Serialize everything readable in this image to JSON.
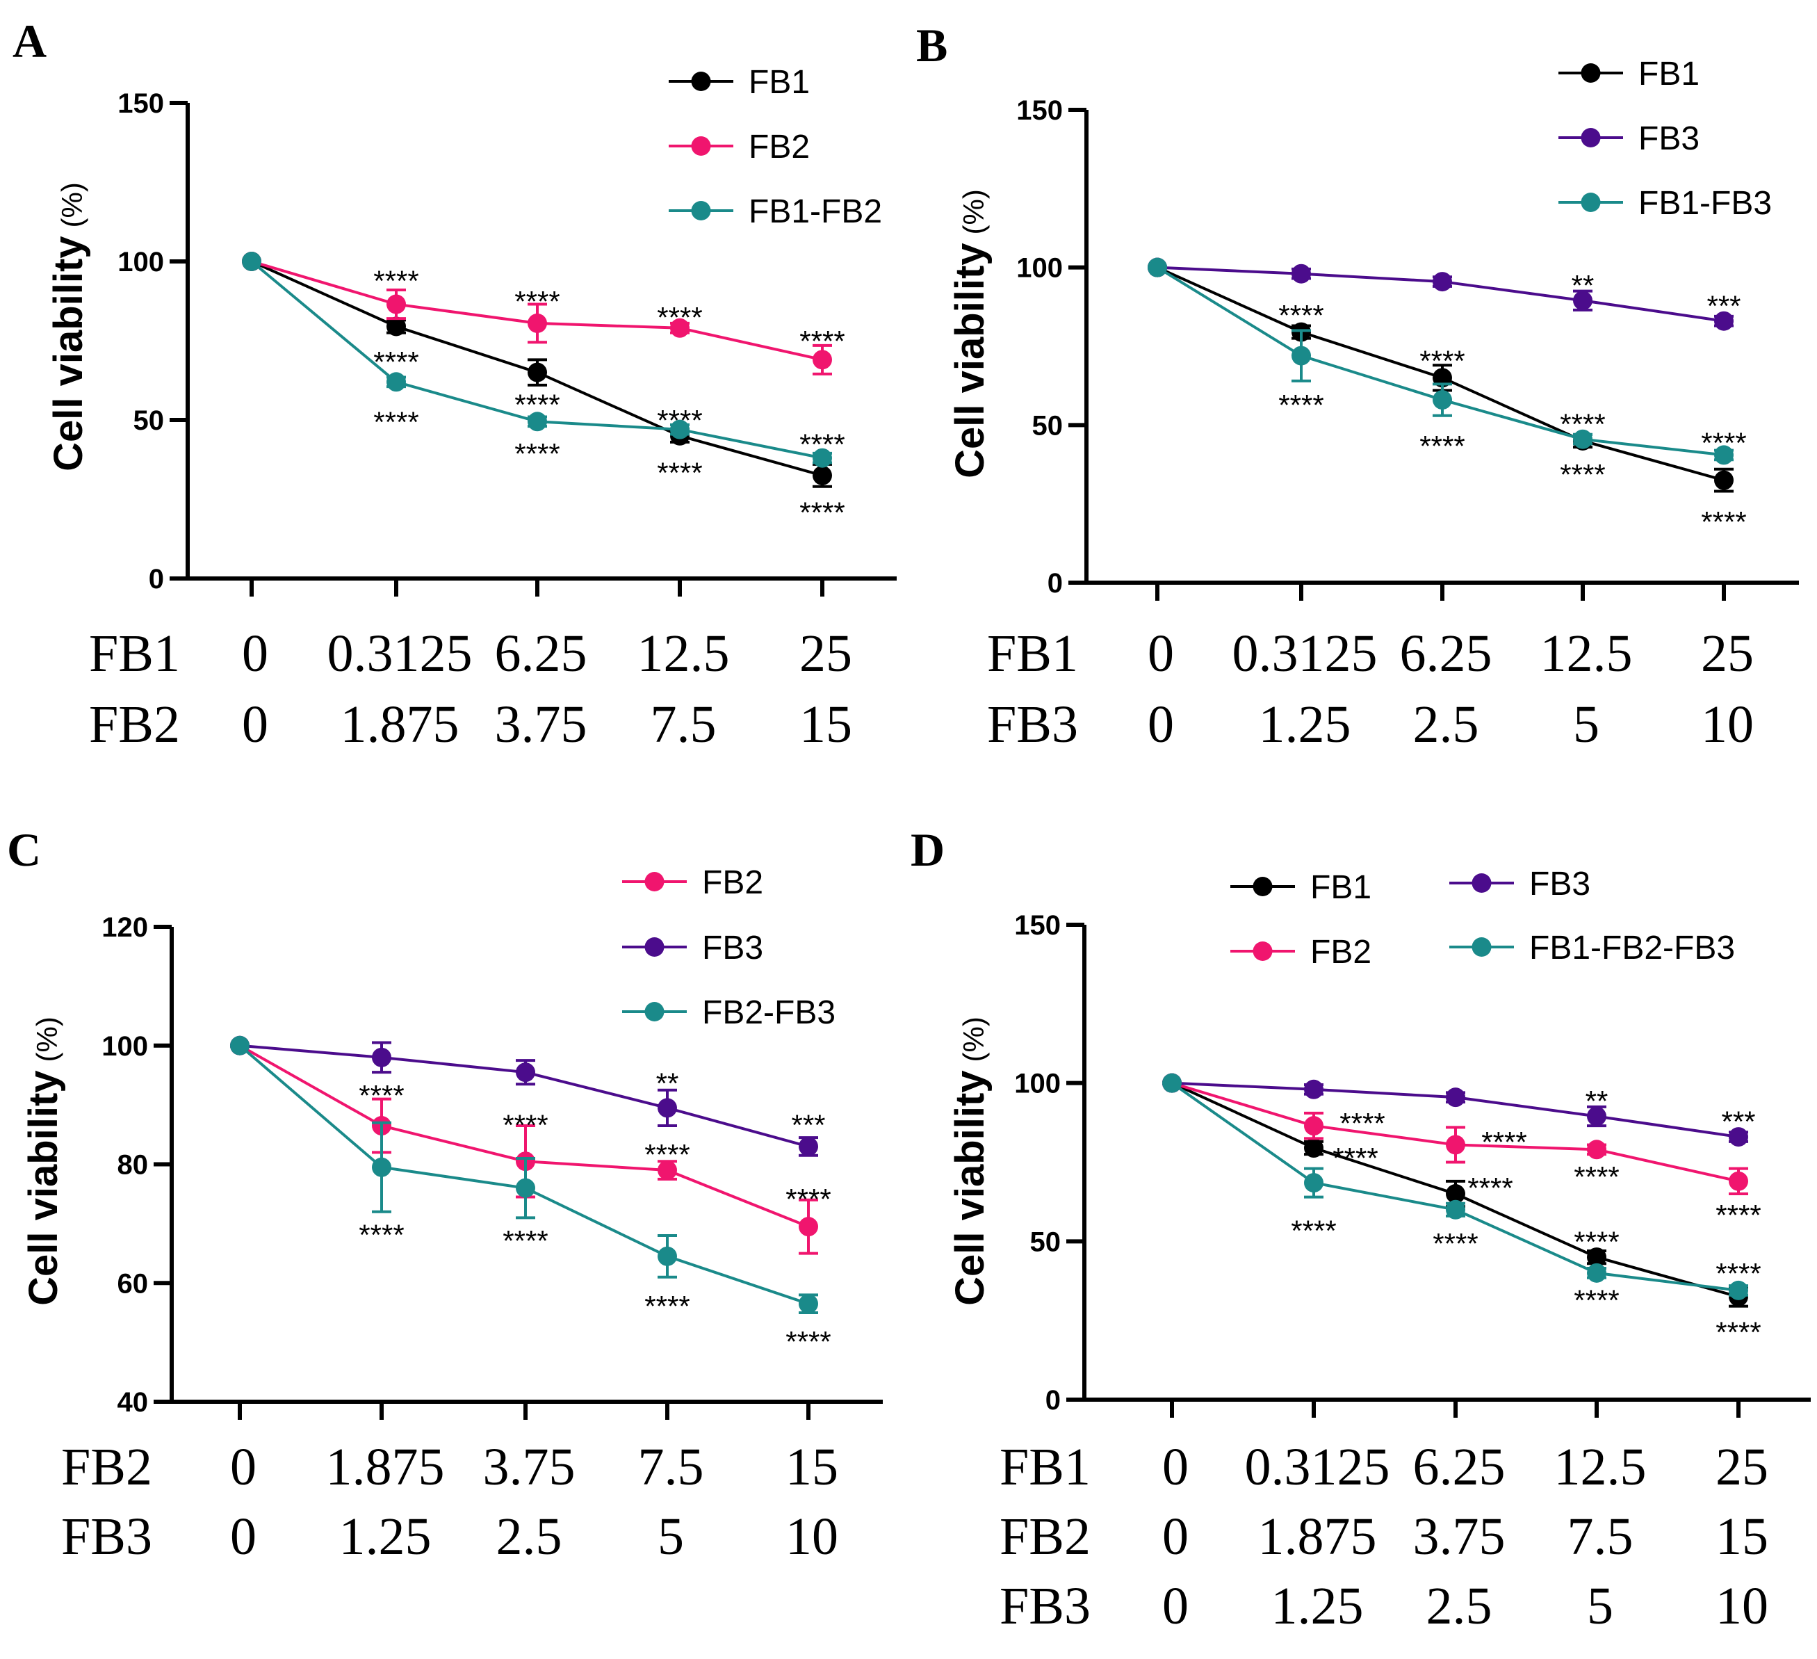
{
  "colors": {
    "FB1": "#000000",
    "FB2": "#f0156e",
    "FB3": "#4b0c8c",
    "COMBO": "#1a8a8a"
  },
  "chart_data": [
    {
      "id": "A",
      "type": "line",
      "panel_label": "A",
      "ylabel": "Cell viability",
      "yunit": "(%)",
      "ylim": [
        0,
        150
      ],
      "yticks": [
        0,
        50,
        100,
        150
      ],
      "legend": [
        {
          "label": "FB1",
          "color_key": "FB1"
        },
        {
          "label": "FB2",
          "color_key": "FB2"
        },
        {
          "label": "FB1-FB2",
          "color_key": "COMBO"
        }
      ],
      "dose_rows": [
        {
          "label": "FB1",
          "values": [
            "0",
            "0.3125",
            "6.25",
            "12.5",
            "25"
          ]
        },
        {
          "label": "FB2",
          "values": [
            "0",
            "1.875",
            "3.75",
            "7.5",
            "15"
          ]
        }
      ],
      "series": [
        {
          "name": "FB1",
          "color_key": "FB1",
          "values": [
            100,
            79.5,
            65,
            45,
            32.5
          ],
          "errors": [
            0,
            2,
            4,
            2,
            3.5
          ]
        },
        {
          "name": "FB2",
          "color_key": "FB2",
          "values": [
            100,
            86.5,
            80.5,
            79,
            69
          ],
          "errors": [
            0,
            4.5,
            6,
            1.5,
            4.5
          ]
        },
        {
          "name": "FB1-FB2",
          "color_key": "COMBO",
          "values": [
            100,
            62,
            49.5,
            47,
            38
          ],
          "errors": [
            0,
            1.5,
            1.5,
            1.5,
            1.5
          ]
        }
      ],
      "annotations": [
        {
          "text": "****",
          "point": 1,
          "value": 95.5
        },
        {
          "text": "****",
          "point": 1,
          "value": 70
        },
        {
          "text": "****",
          "point": 1,
          "value": 51
        },
        {
          "text": "****",
          "point": 2,
          "value": 89
        },
        {
          "text": "****",
          "point": 2,
          "value": 56.5
        },
        {
          "text": "****",
          "point": 2,
          "value": 41
        },
        {
          "text": "****",
          "point": 3,
          "value": 84
        },
        {
          "text": "****",
          "point": 3,
          "value": 51.5
        },
        {
          "text": "****",
          "point": 3,
          "value": 35
        },
        {
          "text": "****",
          "point": 4,
          "value": 76.5
        },
        {
          "text": "****",
          "point": 4,
          "value": 44
        },
        {
          "text": "****",
          "point": 4,
          "value": 22.5
        }
      ]
    },
    {
      "id": "B",
      "type": "line",
      "panel_label": "B",
      "ylabel": "Cell viability",
      "yunit": "(%)",
      "ylim": [
        0,
        150
      ],
      "yticks": [
        0,
        50,
        100,
        150
      ],
      "legend": [
        {
          "label": "FB1",
          "color_key": "FB1"
        },
        {
          "label": "FB3",
          "color_key": "FB3"
        },
        {
          "label": "FB1-FB3",
          "color_key": "COMBO"
        }
      ],
      "dose_rows": [
        {
          "label": "FB1",
          "values": [
            "0",
            "0.3125",
            "6.25",
            "12.5",
            "25"
          ]
        },
        {
          "label": "FB3",
          "values": [
            "0",
            "1.25",
            "2.5",
            "5",
            "10"
          ]
        }
      ],
      "series": [
        {
          "name": "FB1",
          "color_key": "FB1",
          "values": [
            100,
            79.5,
            65,
            45,
            32.5
          ],
          "errors": [
            0,
            2,
            4,
            2,
            3.5
          ]
        },
        {
          "name": "FB3",
          "color_key": "FB3",
          "values": [
            100,
            98,
            95.5,
            89.5,
            83
          ],
          "errors": [
            0,
            1.5,
            1.5,
            3,
            1.5
          ]
        },
        {
          "name": "FB1-FB3",
          "color_key": "COMBO",
          "values": [
            100,
            72,
            58,
            45.5,
            40.5
          ],
          "errors": [
            0,
            8,
            5,
            1.5,
            1.5
          ]
        }
      ],
      "annotations": [
        {
          "text": "****",
          "point": 1,
          "value": 86.5
        },
        {
          "text": "****",
          "point": 1,
          "value": 58
        },
        {
          "text": "****",
          "point": 2,
          "value": 72
        },
        {
          "text": "****",
          "point": 2,
          "value": 45
        },
        {
          "text": "**",
          "point": 3,
          "value": 96
        },
        {
          "text": "****",
          "point": 3,
          "value": 52
        },
        {
          "text": "****",
          "point": 3,
          "value": 36
        },
        {
          "text": "***",
          "point": 4,
          "value": 89.5
        },
        {
          "text": "****",
          "point": 4,
          "value": 46
        },
        {
          "text": "****",
          "point": 4,
          "value": 21
        }
      ]
    },
    {
      "id": "C",
      "type": "line",
      "panel_label": "C",
      "ylabel": "Cell viability",
      "yunit": "(%)",
      "ylim": [
        40,
        120
      ],
      "yticks": [
        40,
        60,
        80,
        100,
        120
      ],
      "legend": [
        {
          "label": "FB2",
          "color_key": "FB2"
        },
        {
          "label": "FB3",
          "color_key": "FB3"
        },
        {
          "label": "FB2-FB3",
          "color_key": "COMBO"
        }
      ],
      "dose_rows": [
        {
          "label": "FB2",
          "values": [
            "0",
            "1.875",
            "3.75",
            "7.5",
            "15"
          ]
        },
        {
          "label": "FB3",
          "values": [
            "0",
            "1.25",
            "2.5",
            "5",
            "10"
          ]
        }
      ],
      "series": [
        {
          "name": "FB2",
          "color_key": "FB2",
          "values": [
            100,
            86.5,
            80.5,
            79,
            69.5
          ],
          "errors": [
            0,
            4.5,
            6,
            1.5,
            4.5
          ]
        },
        {
          "name": "FB3",
          "color_key": "FB3",
          "values": [
            100,
            98,
            95.5,
            89.5,
            83
          ],
          "errors": [
            0,
            2.5,
            2,
            3,
            1.5
          ]
        },
        {
          "name": "FB2-FB3",
          "color_key": "COMBO",
          "values": [
            100,
            79.5,
            76,
            64.5,
            56.5
          ],
          "errors": [
            0,
            7.5,
            5,
            3.5,
            1.5
          ]
        }
      ],
      "annotations": [
        {
          "text": "****",
          "point": 1,
          "value": 92.5
        },
        {
          "text": "****",
          "point": 1,
          "value": 69
        },
        {
          "text": "****",
          "point": 2,
          "value": 87.5
        },
        {
          "text": "****",
          "point": 2,
          "value": 68
        },
        {
          "text": "**",
          "point": 3,
          "value": 94.5
        },
        {
          "text": "****",
          "point": 3,
          "value": 82.5
        },
        {
          "text": "****",
          "point": 3,
          "value": 57
        },
        {
          "text": "***",
          "point": 4,
          "value": 87.5
        },
        {
          "text": "****",
          "point": 4,
          "value": 75
        },
        {
          "text": "****",
          "point": 4,
          "value": 51
        }
      ]
    },
    {
      "id": "D",
      "type": "line",
      "panel_label": "D",
      "ylabel": "Cell viability",
      "yunit": "(%)",
      "ylim": [
        0,
        150
      ],
      "yticks": [
        0,
        50,
        100,
        150
      ],
      "legend": [
        {
          "label": "FB1",
          "color_key": "FB1",
          "slot": "col1-row1"
        },
        {
          "label": "FB2",
          "color_key": "FB2",
          "slot": "col1-row2"
        },
        {
          "label": "FB3",
          "color_key": "FB3",
          "slot": "col2-row1"
        },
        {
          "label": "FB1-FB2-FB3",
          "color_key": "COMBO",
          "slot": "col2-row2"
        }
      ],
      "dose_rows": [
        {
          "label": "FB1",
          "values": [
            "0",
            "0.3125",
            "6.25",
            "12.5",
            "25"
          ]
        },
        {
          "label": "FB2",
          "values": [
            "0",
            "1.875",
            "3.75",
            "7.5",
            "15"
          ]
        },
        {
          "label": "FB3",
          "values": [
            "0",
            "1.25",
            "2.5",
            "5",
            "10"
          ]
        }
      ],
      "series": [
        {
          "name": "FB1",
          "color_key": "FB1",
          "values": [
            100,
            79.5,
            65,
            45,
            32.5
          ],
          "errors": [
            0,
            2,
            4,
            2,
            3
          ]
        },
        {
          "name": "FB2",
          "color_key": "FB2",
          "values": [
            100,
            86.5,
            80.5,
            79,
            69
          ],
          "errors": [
            0,
            4,
            5.5,
            1.5,
            4
          ]
        },
        {
          "name": "FB3",
          "color_key": "FB3",
          "values": [
            100,
            98,
            95.5,
            89.5,
            83
          ],
          "errors": [
            0,
            1.5,
            1.5,
            3,
            1.5
          ]
        },
        {
          "name": "FB1-FB2-FB3",
          "color_key": "COMBO",
          "values": [
            100,
            68.5,
            60,
            40,
            34.5
          ],
          "errors": [
            0,
            4.5,
            2,
            1.5,
            1.5
          ]
        }
      ],
      "annotations": [
        {
          "text": "****",
          "point": 1,
          "value": 89,
          "offset": 70
        },
        {
          "text": "****",
          "point": 1,
          "value": 78,
          "offset": 60
        },
        {
          "text": "****",
          "point": 1,
          "value": 55
        },
        {
          "text": "****",
          "point": 2,
          "value": 83,
          "offset": 70
        },
        {
          "text": "****",
          "point": 2,
          "value": 68.5,
          "offset": 50
        },
        {
          "text": "****",
          "point": 2,
          "value": 51
        },
        {
          "text": "**",
          "point": 3,
          "value": 96
        },
        {
          "text": "****",
          "point": 3,
          "value": 72
        },
        {
          "text": "****",
          "point": 3,
          "value": 51.5
        },
        {
          "text": "****",
          "point": 3,
          "value": 33
        },
        {
          "text": "***",
          "point": 4,
          "value": 89.5
        },
        {
          "text": "****",
          "point": 4,
          "value": 60
        },
        {
          "text": "****",
          "point": 4,
          "value": 41.5
        },
        {
          "text": "****",
          "point": 4,
          "value": 23
        }
      ]
    }
  ]
}
